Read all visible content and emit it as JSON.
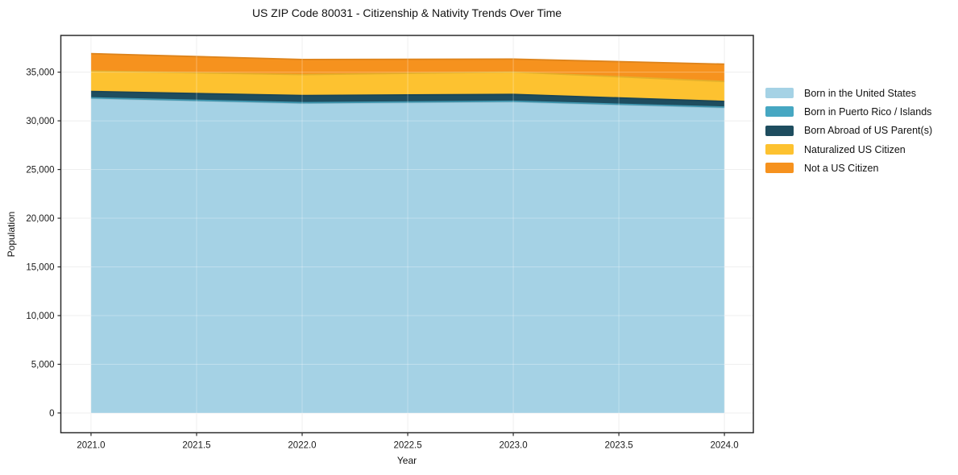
{
  "chart_data": {
    "type": "area",
    "stacked": true,
    "title": "US ZIP Code 80031 - Citizenship & Nativity Trends Over Time",
    "xlabel": "Year",
    "ylabel": "Population",
    "x": [
      2021,
      2022,
      2023,
      2024
    ],
    "series": [
      {
        "name": "Born in the United States",
        "color": "#A5D2E5",
        "values": [
          32300,
          31800,
          31950,
          31350
        ]
      },
      {
        "name": "Born in Puerto Rico / Islands",
        "color": "#46A7C2",
        "values": [
          60,
          60,
          60,
          60
        ]
      },
      {
        "name": "Born Abroad of US Parent(s)",
        "color": "#1E4D5F",
        "values": [
          650,
          740,
          700,
          580
        ]
      },
      {
        "name": "Naturalized US Citizen",
        "color": "#FDC230",
        "values": [
          2100,
          2150,
          2300,
          2050
        ]
      },
      {
        "name": "Not a US Citizen",
        "color": "#F6921E",
        "values": [
          1790,
          1550,
          1330,
          1780
        ]
      }
    ],
    "x_ticks": [
      "2021.0",
      "2021.5",
      "2022.0",
      "2022.5",
      "2023.0",
      "2023.5",
      "2024.0"
    ],
    "x_tick_values": [
      2021,
      2021.5,
      2022,
      2022.5,
      2023,
      2023.5,
      2024
    ],
    "y_ticks": [
      "0",
      "5,000",
      "10,000",
      "15,000",
      "20,000",
      "25,000",
      "30,000",
      "35,000"
    ],
    "y_tick_values": [
      0,
      5000,
      10000,
      15000,
      20000,
      25000,
      30000,
      35000
    ],
    "xlim": [
      2020.857,
      2024.137
    ],
    "ylim": [
      -2030,
      38770
    ],
    "grid": true,
    "legend_position": "right"
  }
}
